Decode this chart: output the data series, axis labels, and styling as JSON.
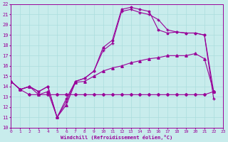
{
  "xlabel": "Windchill (Refroidissement éolien,°C)",
  "xlim": [
    0,
    23
  ],
  "ylim": [
    10,
    22
  ],
  "xticks": [
    0,
    1,
    2,
    3,
    4,
    5,
    6,
    7,
    8,
    9,
    10,
    11,
    12,
    13,
    14,
    15,
    16,
    17,
    18,
    19,
    20,
    21,
    22,
    23
  ],
  "yticks": [
    10,
    11,
    12,
    13,
    14,
    15,
    16,
    17,
    18,
    19,
    20,
    21,
    22
  ],
  "bg_color": "#c8ecec",
  "grid_color": "#aadddd",
  "line_color": "#990099",
  "series": [
    {
      "x": [
        0,
        1,
        2,
        3,
        4,
        5,
        6,
        7,
        8,
        9,
        10,
        11,
        12,
        13,
        14,
        15,
        16,
        17,
        18,
        19,
        20,
        21,
        22
      ],
      "y": [
        14.5,
        13.7,
        13.2,
        13.2,
        13.2,
        13.2,
        13.2,
        13.2,
        13.2,
        13.2,
        13.2,
        13.2,
        13.2,
        13.2,
        13.2,
        13.2,
        13.2,
        13.2,
        13.2,
        13.2,
        13.2,
        13.2,
        13.5
      ],
      "marker": "D",
      "markersize": 2.0,
      "lw": 0.8
    },
    {
      "x": [
        0,
        1,
        2,
        3,
        4,
        5,
        6,
        7,
        8,
        9,
        10,
        11,
        12,
        13,
        14,
        15,
        16,
        17,
        18,
        19,
        20,
        21,
        22
      ],
      "y": [
        14.5,
        13.7,
        14.0,
        13.2,
        13.5,
        11.0,
        12.2,
        14.4,
        14.5,
        15.0,
        15.5,
        15.8,
        16.0,
        16.3,
        16.5,
        16.7,
        16.8,
        17.0,
        17.0,
        17.0,
        17.2,
        16.7,
        13.5
      ],
      "marker": "^",
      "markersize": 2.5,
      "lw": 0.8
    },
    {
      "x": [
        0,
        1,
        2,
        3,
        4,
        5,
        6,
        7,
        8,
        9,
        10,
        11,
        12,
        13,
        14,
        15,
        16,
        17,
        18,
        19,
        20,
        21,
        22
      ],
      "y": [
        14.5,
        13.7,
        14.0,
        13.5,
        14.0,
        11.0,
        12.5,
        14.5,
        14.8,
        15.5,
        17.5,
        18.2,
        21.3,
        21.5,
        21.2,
        21.0,
        20.5,
        19.5,
        19.3,
        19.2,
        19.2,
        19.0,
        12.8
      ],
      "marker": "+",
      "markersize": 3.5,
      "lw": 0.8
    },
    {
      "x": [
        0,
        1,
        2,
        3,
        4,
        5,
        6,
        7,
        8,
        9,
        10,
        11,
        12,
        13,
        14,
        15,
        16,
        17,
        18,
        19,
        20,
        21,
        22
      ],
      "y": [
        14.5,
        13.7,
        14.0,
        13.5,
        14.0,
        11.0,
        12.8,
        14.5,
        14.8,
        15.5,
        17.8,
        18.5,
        21.5,
        21.7,
        21.5,
        21.3,
        19.5,
        19.2,
        19.3,
        19.2,
        19.2,
        19.0,
        13.5
      ],
      "marker": ".",
      "markersize": 3.5,
      "lw": 0.8
    }
  ]
}
